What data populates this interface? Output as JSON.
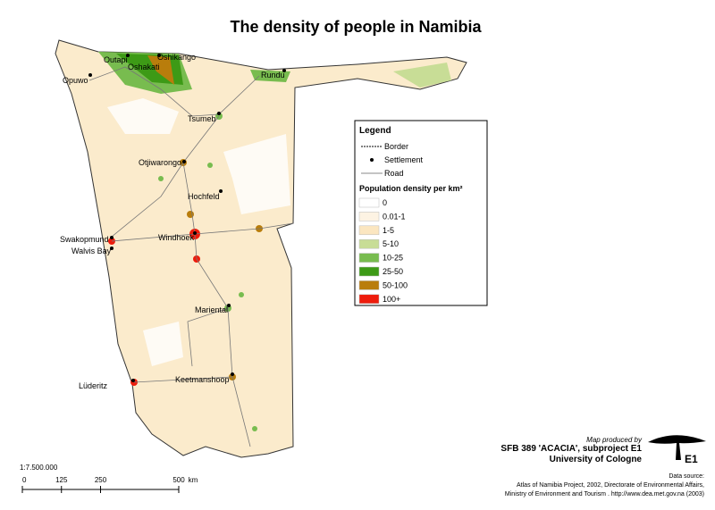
{
  "title": "The density of people in Namibia",
  "towns": [
    "Outapi",
    "Oshikango",
    "Oshakati",
    "Opuwo",
    "Rundu",
    "Tsumeb",
    "Otjiwarongo",
    "Hochfeld",
    "Windhoek",
    "Swakopmund",
    "Walvis Bay",
    "Mariental",
    "Keetmanshoop",
    "Lüderitz"
  ],
  "legend": {
    "title": "Legend",
    "items": [
      "Border",
      "Settlement",
      "Road"
    ],
    "density_title": "Population density per km²",
    "classes": [
      {
        "label": "0",
        "color": "#ffffff"
      },
      {
        "label": "0.01-1",
        "color": "#fdf3e3"
      },
      {
        "label": "1-5",
        "color": "#fbe6c0"
      },
      {
        "label": "5-10",
        "color": "#c8dd96"
      },
      {
        "label": "10-25",
        "color": "#78bc4f"
      },
      {
        "label": "25-50",
        "color": "#3d9a16"
      },
      {
        "label": "50-100",
        "color": "#b97d0c"
      },
      {
        "label": "100+",
        "color": "#ee1c0c"
      }
    ]
  },
  "credits": {
    "produced": "Map produced by",
    "project": "SFB 389 'ACACIA', subproject E1",
    "university": "University of Cologne",
    "logo": "E1",
    "source_title": "Data source:",
    "source_lines": [
      "Atlas of Namibia Project, 2002, Directorate of Environmental Affairs,",
      "Ministry of Environment and Tourism . http://www.dea.met.gov.na (2003)"
    ]
  },
  "scale_bar": {
    "ratio": "1:7.500.000",
    "ticks": [
      0,
      125,
      250,
      500
    ],
    "unit": "km"
  }
}
